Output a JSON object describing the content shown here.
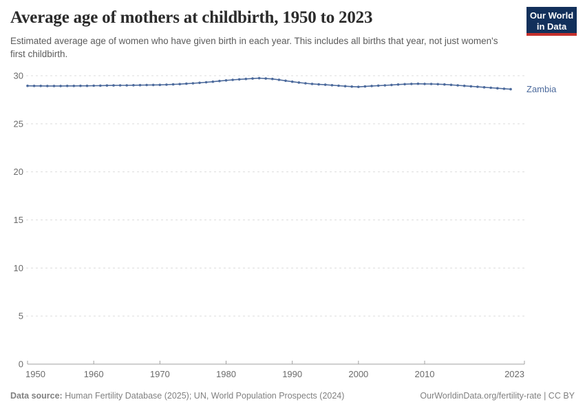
{
  "header": {
    "title": "Average age of mothers at childbirth, 1950 to 2023",
    "subtitle": "Estimated average age of women who have given birth in each year. This includes all births that year, not just women's first childbirth.",
    "logo": {
      "line1": "Our World",
      "line2": "in Data",
      "bg_color": "#12305B",
      "accent_color": "#C5302C"
    }
  },
  "chart_data": {
    "type": "line",
    "title": "Average age of mothers at childbirth, 1950 to 2023",
    "xlabel": "",
    "ylabel": "",
    "xlim": [
      1950,
      2023
    ],
    "ylim": [
      0,
      30
    ],
    "xticks": [
      1950,
      1960,
      1970,
      1980,
      1990,
      2000,
      2010,
      2023
    ],
    "yticks": [
      0,
      5,
      10,
      15,
      20,
      25,
      30
    ],
    "grid": "horizontal-dashed",
    "legend": "end-of-line-label",
    "x": [
      1950,
      1951,
      1952,
      1953,
      1954,
      1955,
      1956,
      1957,
      1958,
      1959,
      1960,
      1961,
      1962,
      1963,
      1964,
      1965,
      1966,
      1967,
      1968,
      1969,
      1970,
      1971,
      1972,
      1973,
      1974,
      1975,
      1976,
      1977,
      1978,
      1979,
      1980,
      1981,
      1982,
      1983,
      1984,
      1985,
      1986,
      1987,
      1988,
      1989,
      1990,
      1991,
      1992,
      1993,
      1994,
      1995,
      1996,
      1997,
      1998,
      1999,
      2000,
      2001,
      2002,
      2003,
      2004,
      2005,
      2006,
      2007,
      2008,
      2009,
      2010,
      2011,
      2012,
      2013,
      2014,
      2015,
      2016,
      2017,
      2018,
      2019,
      2020,
      2021,
      2022,
      2023
    ],
    "series": [
      {
        "name": "Zambia",
        "color": "#4C6A9C",
        "values": [
          28.95,
          28.94,
          28.94,
          28.93,
          28.93,
          28.93,
          28.94,
          28.94,
          28.95,
          28.95,
          28.96,
          28.97,
          28.98,
          28.99,
          29.0,
          29.0,
          29.01,
          29.02,
          29.03,
          29.04,
          29.05,
          29.07,
          29.1,
          29.13,
          29.17,
          29.21,
          29.26,
          29.32,
          29.38,
          29.45,
          29.51,
          29.57,
          29.62,
          29.66,
          29.71,
          29.74,
          29.71,
          29.66,
          29.58,
          29.48,
          29.38,
          29.29,
          29.21,
          29.15,
          29.1,
          29.06,
          29.01,
          28.96,
          28.91,
          28.87,
          28.84,
          28.88,
          28.93,
          28.97,
          29.0,
          29.04,
          29.08,
          29.12,
          29.15,
          29.16,
          29.15,
          29.14,
          29.12,
          29.09,
          29.05,
          29.0,
          28.95,
          28.9,
          28.85,
          28.8,
          28.75,
          28.7,
          28.65,
          28.6
        ]
      }
    ]
  },
  "footer": {
    "source_label": "Data source:",
    "source_text": " Human Fertility Database (2025); UN, World Population Prospects (2024)",
    "attribution": "OurWorldinData.org/fertility-rate | CC BY"
  }
}
